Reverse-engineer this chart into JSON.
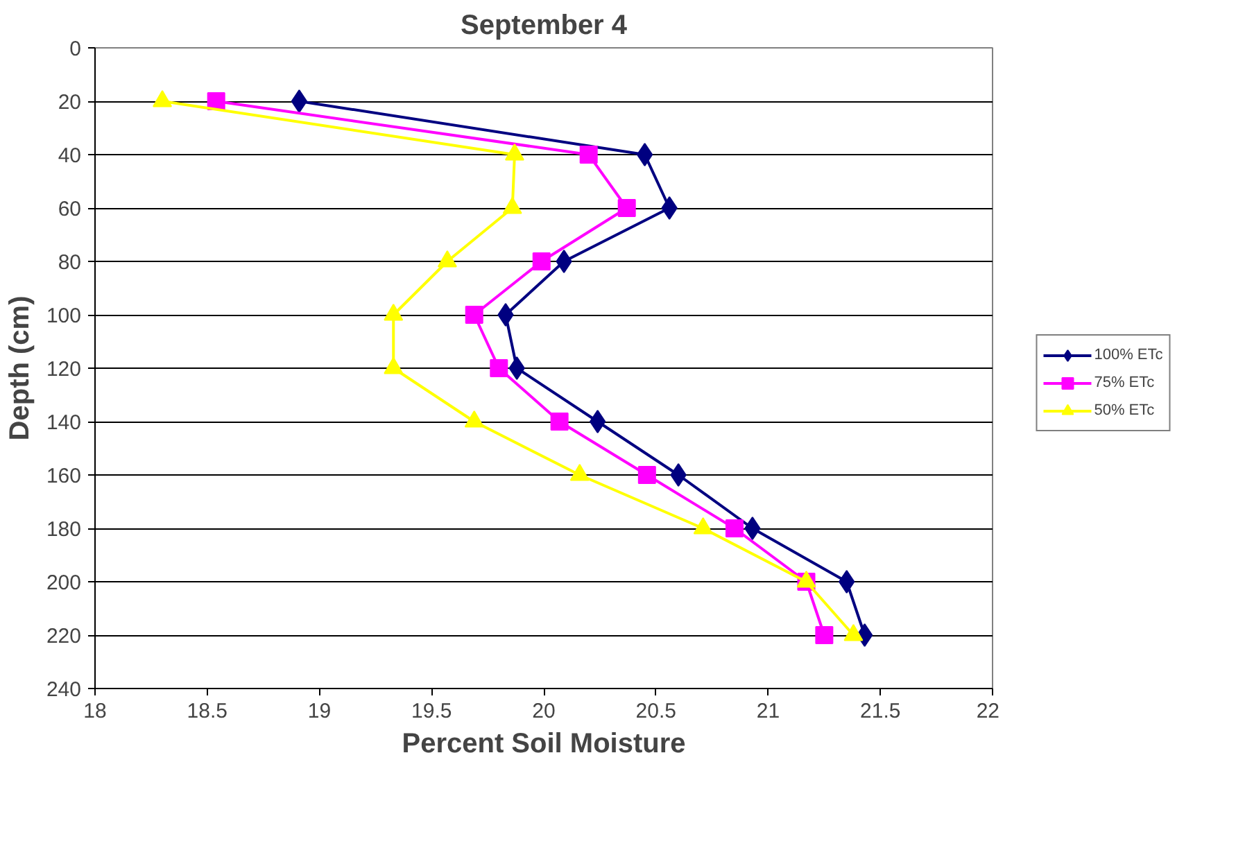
{
  "chart_data": {
    "type": "line",
    "title": "September 4",
    "xlabel": "Percent Soil Moisture",
    "ylabel": "Depth (cm)",
    "xlim": [
      18,
      22
    ],
    "xticks": [
      18,
      18.5,
      19,
      19.5,
      20,
      20.5,
      21,
      21.5,
      22
    ],
    "ylim": [
      240,
      0
    ],
    "yticks": [
      0,
      20,
      40,
      60,
      80,
      100,
      120,
      140,
      160,
      180,
      200,
      220,
      240
    ],
    "grid": "y",
    "legend": "right",
    "series": [
      {
        "name": "100% ETc",
        "color": "#000080",
        "marker": "diamond",
        "x": [
          18.91,
          20.45,
          20.56,
          20.09,
          19.83,
          19.88,
          20.24,
          20.6,
          20.93,
          21.35,
          21.43
        ],
        "values": [
          20,
          40,
          60,
          80,
          100,
          120,
          140,
          160,
          180,
          200,
          220
        ]
      },
      {
        "name": "75% ETc",
        "color": "#ff00ff",
        "marker": "square",
        "x": [
          18.54,
          20.2,
          20.37,
          19.99,
          19.69,
          19.8,
          20.07,
          20.46,
          20.85,
          21.17,
          21.25
        ],
        "values": [
          20,
          40,
          60,
          80,
          100,
          120,
          140,
          160,
          180,
          200,
          220
        ]
      },
      {
        "name": "50% ETc",
        "color": "#ffff00",
        "marker": "triangle",
        "x": [
          18.3,
          19.87,
          19.86,
          19.57,
          19.33,
          19.33,
          19.69,
          20.16,
          20.71,
          21.17,
          21.38
        ],
        "values": [
          20,
          40,
          60,
          80,
          100,
          120,
          140,
          160,
          180,
          200,
          220
        ]
      }
    ]
  }
}
